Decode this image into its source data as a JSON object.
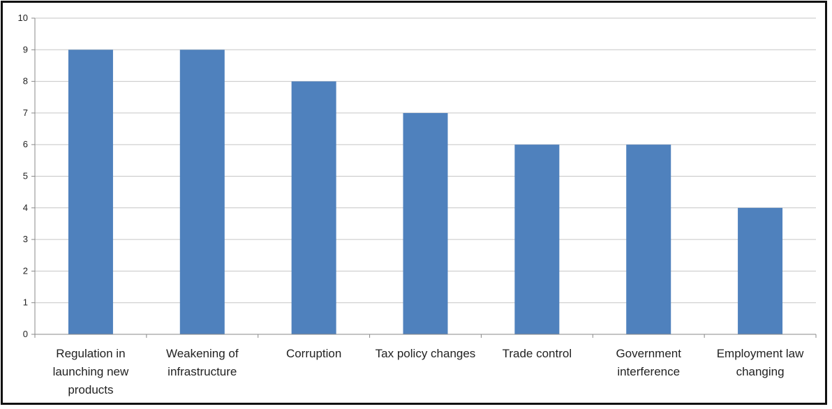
{
  "chart_data": {
    "type": "bar",
    "categories": [
      "Regulation in launching new products",
      "Weakening of infrastructure",
      "Corruption",
      "Tax policy changes",
      "Trade control",
      "Government interference",
      "Employment law changing"
    ],
    "category_lines": [
      [
        "Regulation in",
        "launching new",
        "products"
      ],
      [
        "Weakening of",
        "infrastructure"
      ],
      [
        "Corruption"
      ],
      [
        "Tax policy changes"
      ],
      [
        "Trade control"
      ],
      [
        "Government",
        "interference"
      ],
      [
        "Employment law",
        "changing"
      ]
    ],
    "values": [
      9,
      9,
      8,
      7,
      6,
      6,
      4
    ],
    "title": "",
    "xlabel": "",
    "ylabel": "",
    "ylim": [
      0,
      10
    ],
    "yticks": [
      0,
      1,
      2,
      3,
      4,
      5,
      6,
      7,
      8,
      9,
      10
    ],
    "grid": true,
    "legend": "none",
    "colors": {
      "bar": "#4f81bd",
      "grid": "#c6c6c6",
      "axis": "#888888"
    }
  }
}
